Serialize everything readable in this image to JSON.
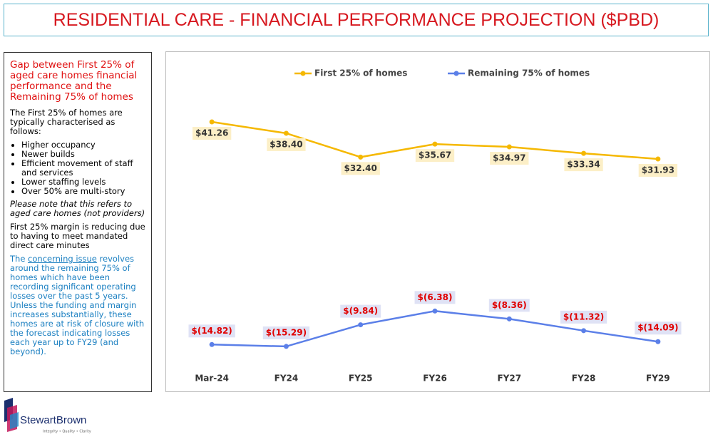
{
  "title": "RESIDENTIAL CARE - FINANCIAL PERFORMANCE PROJECTION ($PBD)",
  "sidebar": {
    "heading": "Gap between First 25% of aged care homes financial performance and the Remaining 75% of homes",
    "intro": "The First 25% of homes are typically characterised as follows:",
    "bullets": [
      "Higher occupancy",
      "Newer builds",
      "Efficient movement of staff and services",
      "Lower staffing levels",
      "Over 50% are multi-story"
    ],
    "note": "Please note that this refers to aged care homes (not providers)",
    "margin": "First 25% margin is reducing due to having to meet mandated direct care minutes",
    "issue": [
      "The ",
      "concerning issue",
      " revolves around the remaining 75% of homes which have been recording significant operating losses over the past 5 years. Unless  the funding and margin increases substantially, these homes are at risk of closure with the forecast indicating losses each year up to FY29 (and beyond)."
    ]
  },
  "logo": {
    "name": "StewartBrown",
    "tagline": "Integrity • Quality • Clarity"
  },
  "chart_data": {
    "type": "line",
    "categories": [
      "Mar-24",
      "FY24",
      "FY25",
      "FY26",
      "FY27",
      "FY28",
      "FY29"
    ],
    "series": [
      {
        "name": "First 25% of homes",
        "color": "#f5b800",
        "values": [
          41.26,
          38.4,
          32.4,
          35.67,
          34.97,
          33.34,
          31.93
        ],
        "value_labels": [
          "$41.26",
          "$38.40",
          "$32.40",
          "$35.67",
          "$34.97",
          "$33.34",
          "$31.93"
        ]
      },
      {
        "name": "Remaining 75% of homes",
        "color": "#5b7fe8",
        "values": [
          -14.82,
          -15.29,
          -9.84,
          -6.38,
          -8.36,
          -11.32,
          -14.09
        ],
        "value_labels": [
          "$(14.82)",
          "$(15.29)",
          "$(9.84)",
          "$(6.38)",
          "$(8.36)",
          "$(11.32)",
          "$(14.09)"
        ]
      }
    ],
    "ylim": [
      -25,
      55
    ],
    "legend": "top"
  }
}
